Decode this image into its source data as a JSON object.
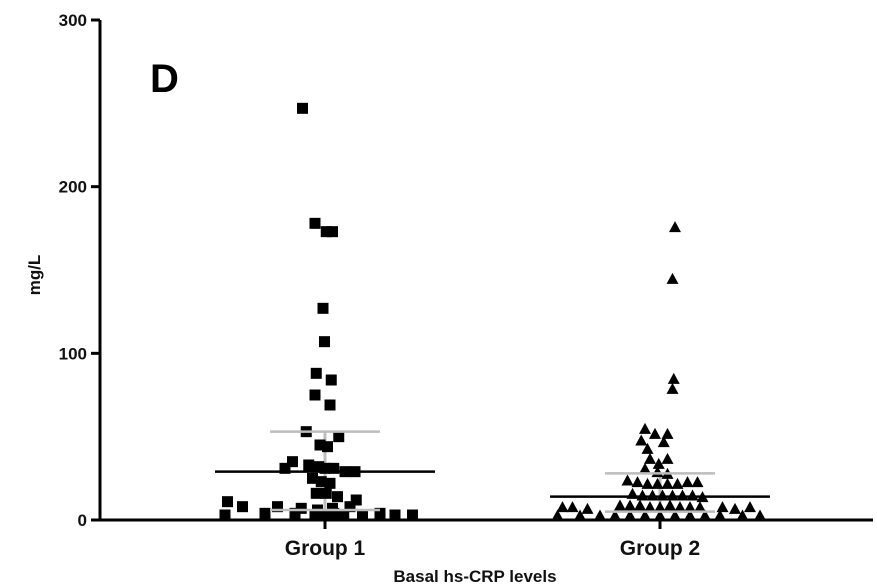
{
  "chart_data": {
    "type": "scatter",
    "panel_label": "D",
    "title": "",
    "xlabel": "Basal hs-CRP levels",
    "ylabel": "mg/L",
    "ylim": [
      0,
      300
    ],
    "yticks": [
      0,
      100,
      200,
      300
    ],
    "categories": [
      "Group 1",
      "Group 2"
    ],
    "grid": false,
    "colors": {
      "points": "#000000",
      "summary_lines": "#000000",
      "iqr_line": "#bdbdbd"
    },
    "series": [
      {
        "category": "Group 1",
        "marker": "square",
        "median": 29,
        "q1": 6,
        "q3": 53,
        "points": [
          {
            "dx": -0.9,
            "y": 247
          },
          {
            "dx": -0.4,
            "y": 178
          },
          {
            "dx": 0.05,
            "y": 173
          },
          {
            "dx": 0.3,
            "y": 173
          },
          {
            "dx": -0.08,
            "y": 127
          },
          {
            "dx": -0.02,
            "y": 107
          },
          {
            "dx": -0.35,
            "y": 88
          },
          {
            "dx": 0.25,
            "y": 84
          },
          {
            "dx": -0.4,
            "y": 75
          },
          {
            "dx": 0.2,
            "y": 69
          },
          {
            "dx": -0.75,
            "y": 53
          },
          {
            "dx": 0.55,
            "y": 50
          },
          {
            "dx": -0.2,
            "y": 45
          },
          {
            "dx": 0.1,
            "y": 44
          },
          {
            "dx": -1.3,
            "y": 35
          },
          {
            "dx": -1.6,
            "y": 31
          },
          {
            "dx": -0.65,
            "y": 33
          },
          {
            "dx": -0.25,
            "y": 32
          },
          {
            "dx": 0.0,
            "y": 31
          },
          {
            "dx": 0.35,
            "y": 31
          },
          {
            "dx": 0.8,
            "y": 29
          },
          {
            "dx": 1.2,
            "y": 29
          },
          {
            "dx": -0.5,
            "y": 25
          },
          {
            "dx": -0.15,
            "y": 23
          },
          {
            "dx": 0.2,
            "y": 22
          },
          {
            "dx": -0.35,
            "y": 16
          },
          {
            "dx": 0.05,
            "y": 16
          },
          {
            "dx": 0.5,
            "y": 14
          },
          {
            "dx": 1.25,
            "y": 12
          },
          {
            "dx": -3.9,
            "y": 11
          },
          {
            "dx": -3.3,
            "y": 8
          },
          {
            "dx": -1.9,
            "y": 8
          },
          {
            "dx": -0.95,
            "y": 7
          },
          {
            "dx": 1.0,
            "y": 8
          },
          {
            "dx": 0.3,
            "y": 7
          },
          {
            "dx": -0.3,
            "y": 6
          },
          {
            "dx": -4.0,
            "y": 3
          },
          {
            "dx": -2.4,
            "y": 4
          },
          {
            "dx": -1.2,
            "y": 4
          },
          {
            "dx": -0.4,
            "y": 3
          },
          {
            "dx": 0.0,
            "y": 3
          },
          {
            "dx": 0.35,
            "y": 4
          },
          {
            "dx": 0.75,
            "y": 3
          },
          {
            "dx": 1.5,
            "y": 3
          },
          {
            "dx": 2.2,
            "y": 4
          },
          {
            "dx": 2.8,
            "y": 3
          },
          {
            "dx": 3.5,
            "y": 3
          }
        ]
      },
      {
        "category": "Group 2",
        "marker": "triangle",
        "median": 14,
        "q1": 5,
        "q3": 28,
        "points": [
          {
            "dx": 0.6,
            "y": 176
          },
          {
            "dx": 0.5,
            "y": 145
          },
          {
            "dx": 0.55,
            "y": 85
          },
          {
            "dx": 0.5,
            "y": 79
          },
          {
            "dx": -0.6,
            "y": 55
          },
          {
            "dx": -0.2,
            "y": 52
          },
          {
            "dx": 0.3,
            "y": 52
          },
          {
            "dx": -0.75,
            "y": 48
          },
          {
            "dx": 0.15,
            "y": 47
          },
          {
            "dx": -0.5,
            "y": 43
          },
          {
            "dx": -0.4,
            "y": 37
          },
          {
            "dx": 0.3,
            "y": 37
          },
          {
            "dx": -0.05,
            "y": 34
          },
          {
            "dx": -0.6,
            "y": 31
          },
          {
            "dx": -0.1,
            "y": 29
          },
          {
            "dx": 0.3,
            "y": 28
          },
          {
            "dx": -1.3,
            "y": 24
          },
          {
            "dx": -0.9,
            "y": 23
          },
          {
            "dx": -0.5,
            "y": 22
          },
          {
            "dx": -0.1,
            "y": 22
          },
          {
            "dx": 0.3,
            "y": 22
          },
          {
            "dx": 0.7,
            "y": 22
          },
          {
            "dx": 1.1,
            "y": 23
          },
          {
            "dx": 1.5,
            "y": 23
          },
          {
            "dx": -1.1,
            "y": 16
          },
          {
            "dx": -0.7,
            "y": 15
          },
          {
            "dx": -0.3,
            "y": 15
          },
          {
            "dx": 0.1,
            "y": 15
          },
          {
            "dx": 0.5,
            "y": 15
          },
          {
            "dx": 0.9,
            "y": 15
          },
          {
            "dx": 1.3,
            "y": 15
          },
          {
            "dx": 1.7,
            "y": 14
          },
          {
            "dx": -1.6,
            "y": 9
          },
          {
            "dx": -1.2,
            "y": 9
          },
          {
            "dx": -0.8,
            "y": 9
          },
          {
            "dx": -0.4,
            "y": 8
          },
          {
            "dx": 0.0,
            "y": 8
          },
          {
            "dx": 0.4,
            "y": 9
          },
          {
            "dx": 0.8,
            "y": 8
          },
          {
            "dx": 1.2,
            "y": 8
          },
          {
            "dx": 1.6,
            "y": 8
          },
          {
            "dx": -3.9,
            "y": 8
          },
          {
            "dx": -3.5,
            "y": 8
          },
          {
            "dx": -2.9,
            "y": 7
          },
          {
            "dx": 2.5,
            "y": 8
          },
          {
            "dx": 3.0,
            "y": 7
          },
          {
            "dx": 3.6,
            "y": 8
          },
          {
            "dx": -4.1,
            "y": 3
          },
          {
            "dx": -3.2,
            "y": 3
          },
          {
            "dx": -2.4,
            "y": 3
          },
          {
            "dx": -1.8,
            "y": 3
          },
          {
            "dx": -1.2,
            "y": 3
          },
          {
            "dx": -0.6,
            "y": 3
          },
          {
            "dx": 0.0,
            "y": 3
          },
          {
            "dx": 0.6,
            "y": 3
          },
          {
            "dx": 1.2,
            "y": 3
          },
          {
            "dx": 1.8,
            "y": 3
          },
          {
            "dx": 2.4,
            "y": 3
          },
          {
            "dx": 3.3,
            "y": 3
          },
          {
            "dx": 4.0,
            "y": 3
          }
        ]
      }
    ]
  }
}
